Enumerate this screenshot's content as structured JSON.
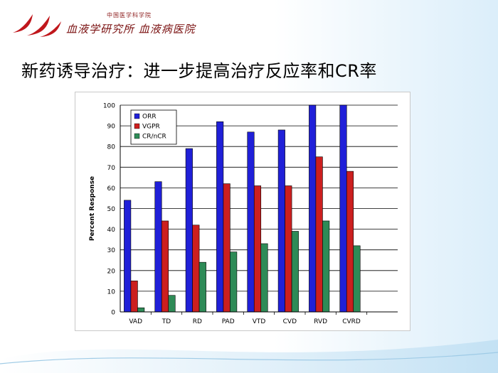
{
  "header": {
    "institution_top": "中国医学科学院",
    "institution_main": "血液学研究所 血液病医院"
  },
  "slide": {
    "title": "新药诱导治疗：进一步提高治疗反应率和CR率"
  },
  "chart_data": {
    "type": "bar",
    "categories": [
      "VAD",
      "TD",
      "RD",
      "PAD",
      "VTD",
      "CVD",
      "RVD",
      "CVRD"
    ],
    "series": [
      {
        "name": "ORR",
        "color": "#2020d8",
        "values": [
          54,
          63,
          79,
          92,
          87,
          88,
          100,
          100
        ]
      },
      {
        "name": "VGPR",
        "color": "#cc1f1f",
        "values": [
          15,
          44,
          42,
          62,
          61,
          61,
          75,
          68
        ]
      },
      {
        "name": "CR/nCR",
        "color": "#2e8b57",
        "values": [
          2,
          8,
          24,
          29,
          33,
          39,
          44,
          32
        ]
      }
    ],
    "ylabel": "Percent Response",
    "xlabel": "",
    "ylim": [
      0,
      100
    ],
    "yticks": [
      0,
      10,
      20,
      30,
      40,
      50,
      60,
      70,
      80,
      90,
      100
    ],
    "grid": "horizontal",
    "legend": "top-left"
  }
}
